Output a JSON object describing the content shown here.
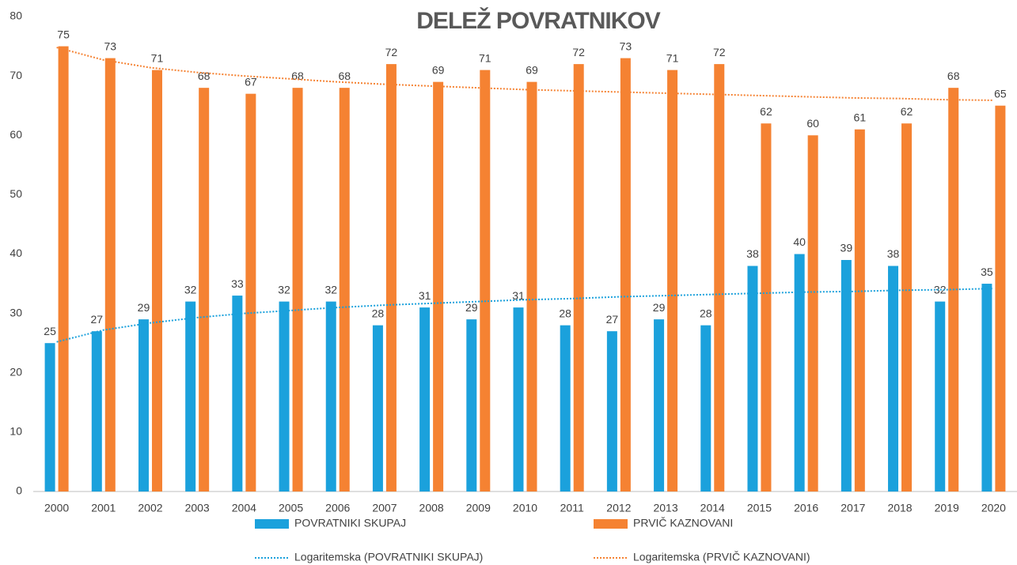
{
  "chart_data": {
    "type": "bar",
    "title": "DELEŽ POVRATNIKOV",
    "categories": [
      "2000",
      "2001",
      "2002",
      "2003",
      "2004",
      "2005",
      "2006",
      "2007",
      "2008",
      "2009",
      "2010",
      "2011",
      "2012",
      "2013",
      "2014",
      "2015",
      "2016",
      "2017",
      "2018",
      "2019",
      "2020"
    ],
    "series": [
      {
        "name": "POVRATNIKI SKUPAJ",
        "type": "bar",
        "color": "#1ba1dc",
        "values": [
          25,
          27,
          29,
          32,
          33,
          32,
          32,
          28,
          31,
          29,
          31,
          28,
          27,
          29,
          28,
          38,
          40,
          39,
          38,
          32,
          35
        ]
      },
      {
        "name": "PRVIČ KAZNOVANI",
        "type": "bar",
        "color": "#f58232",
        "values": [
          75,
          73,
          71,
          68,
          67,
          68,
          68,
          72,
          69,
          71,
          69,
          72,
          73,
          71,
          72,
          62,
          60,
          61,
          62,
          68,
          65
        ]
      },
      {
        "name": "Logaritemska (POVRATNIKI SKUPAJ)",
        "type": "line",
        "color": "#1ba1dc",
        "values": [
          25.2,
          27.2,
          28.4,
          29.3,
          30.0,
          30.5,
          31.0,
          31.4,
          31.7,
          32.0,
          32.3,
          32.5,
          32.8,
          33.0,
          33.2,
          33.4,
          33.6,
          33.7,
          33.9,
          34.0,
          34.2
        ]
      },
      {
        "name": "Logaritemska (PRVIČ KAZNOVANI)",
        "type": "line",
        "color": "#f58232",
        "values": [
          74.8,
          72.7,
          71.4,
          70.6,
          70.0,
          69.5,
          69.0,
          68.6,
          68.3,
          68.0,
          67.7,
          67.5,
          67.3,
          67.1,
          66.9,
          66.7,
          66.5,
          66.3,
          66.2,
          66.0,
          65.9
        ]
      }
    ],
    "ylim": [
      0,
      80
    ],
    "yticks": [
      0,
      10,
      20,
      30,
      40,
      50,
      60,
      70,
      80
    ],
    "grid": false
  }
}
